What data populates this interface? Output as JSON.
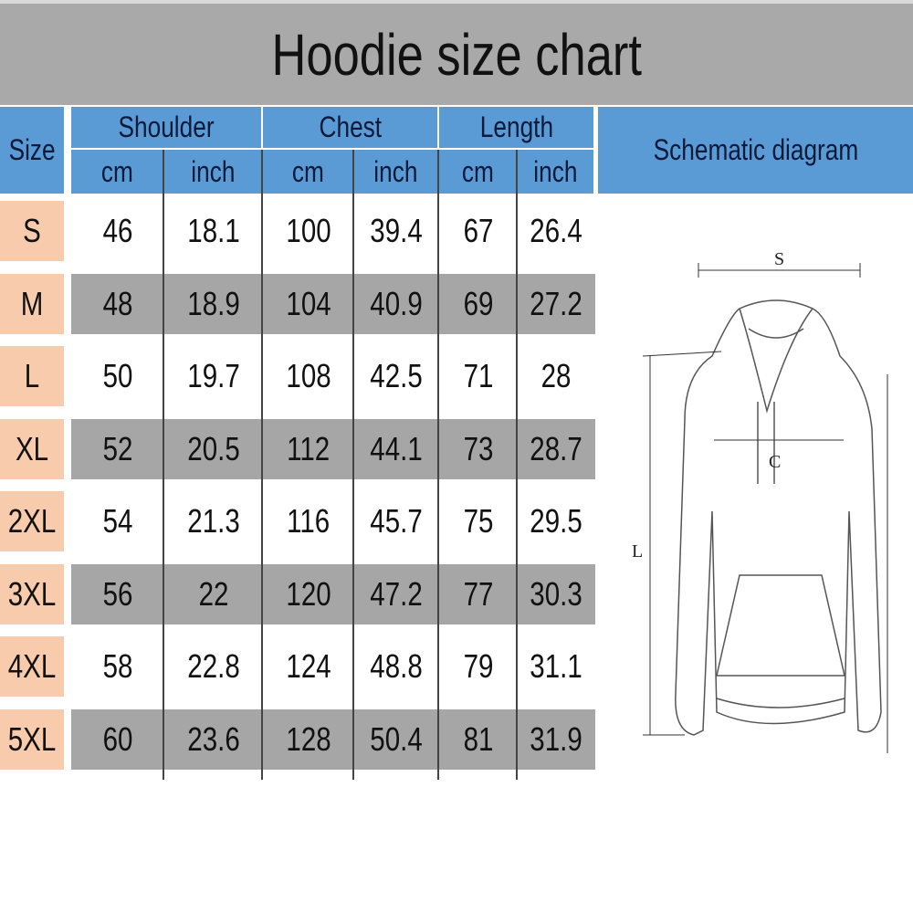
{
  "title": "Hoodie size chart",
  "header": {
    "size": "Size",
    "groups": [
      "Shoulder",
      "Chest",
      "Length"
    ],
    "units": [
      "cm",
      "inch",
      "cm",
      "inch",
      "cm",
      "inch"
    ],
    "schematic": "Schematic diagram"
  },
  "rows": [
    {
      "size": "S",
      "values": [
        "46",
        "18.1",
        "100",
        "39.4",
        "67",
        "26.4"
      ]
    },
    {
      "size": "M",
      "values": [
        "48",
        "18.9",
        "104",
        "40.9",
        "69",
        "27.2"
      ]
    },
    {
      "size": "L",
      "values": [
        "50",
        "19.7",
        "108",
        "42.5",
        "71",
        "28"
      ]
    },
    {
      "size": "XL",
      "values": [
        "52",
        "20.5",
        "112",
        "44.1",
        "73",
        "28.7"
      ]
    },
    {
      "size": "2XL",
      "values": [
        "54",
        "21.3",
        "116",
        "45.7",
        "75",
        "29.5"
      ]
    },
    {
      "size": "3XL",
      "values": [
        "56",
        "22",
        "120",
        "47.2",
        "77",
        "30.3"
      ]
    },
    {
      "size": "4XL",
      "values": [
        "58",
        "22.8",
        "124",
        "48.8",
        "79",
        "31.1"
      ]
    },
    {
      "size": "5XL",
      "values": [
        "60",
        "23.6",
        "128",
        "50.4",
        "81",
        "31.9"
      ]
    }
  ],
  "diagram_labels": {
    "shoulder": "S",
    "chest": "C",
    "length": "L"
  },
  "colors": {
    "header": "#5b9bd5",
    "title_band": "#a9a9a9",
    "size_cell": "#f8cbad",
    "alt_row": "#a6a6a6"
  }
}
